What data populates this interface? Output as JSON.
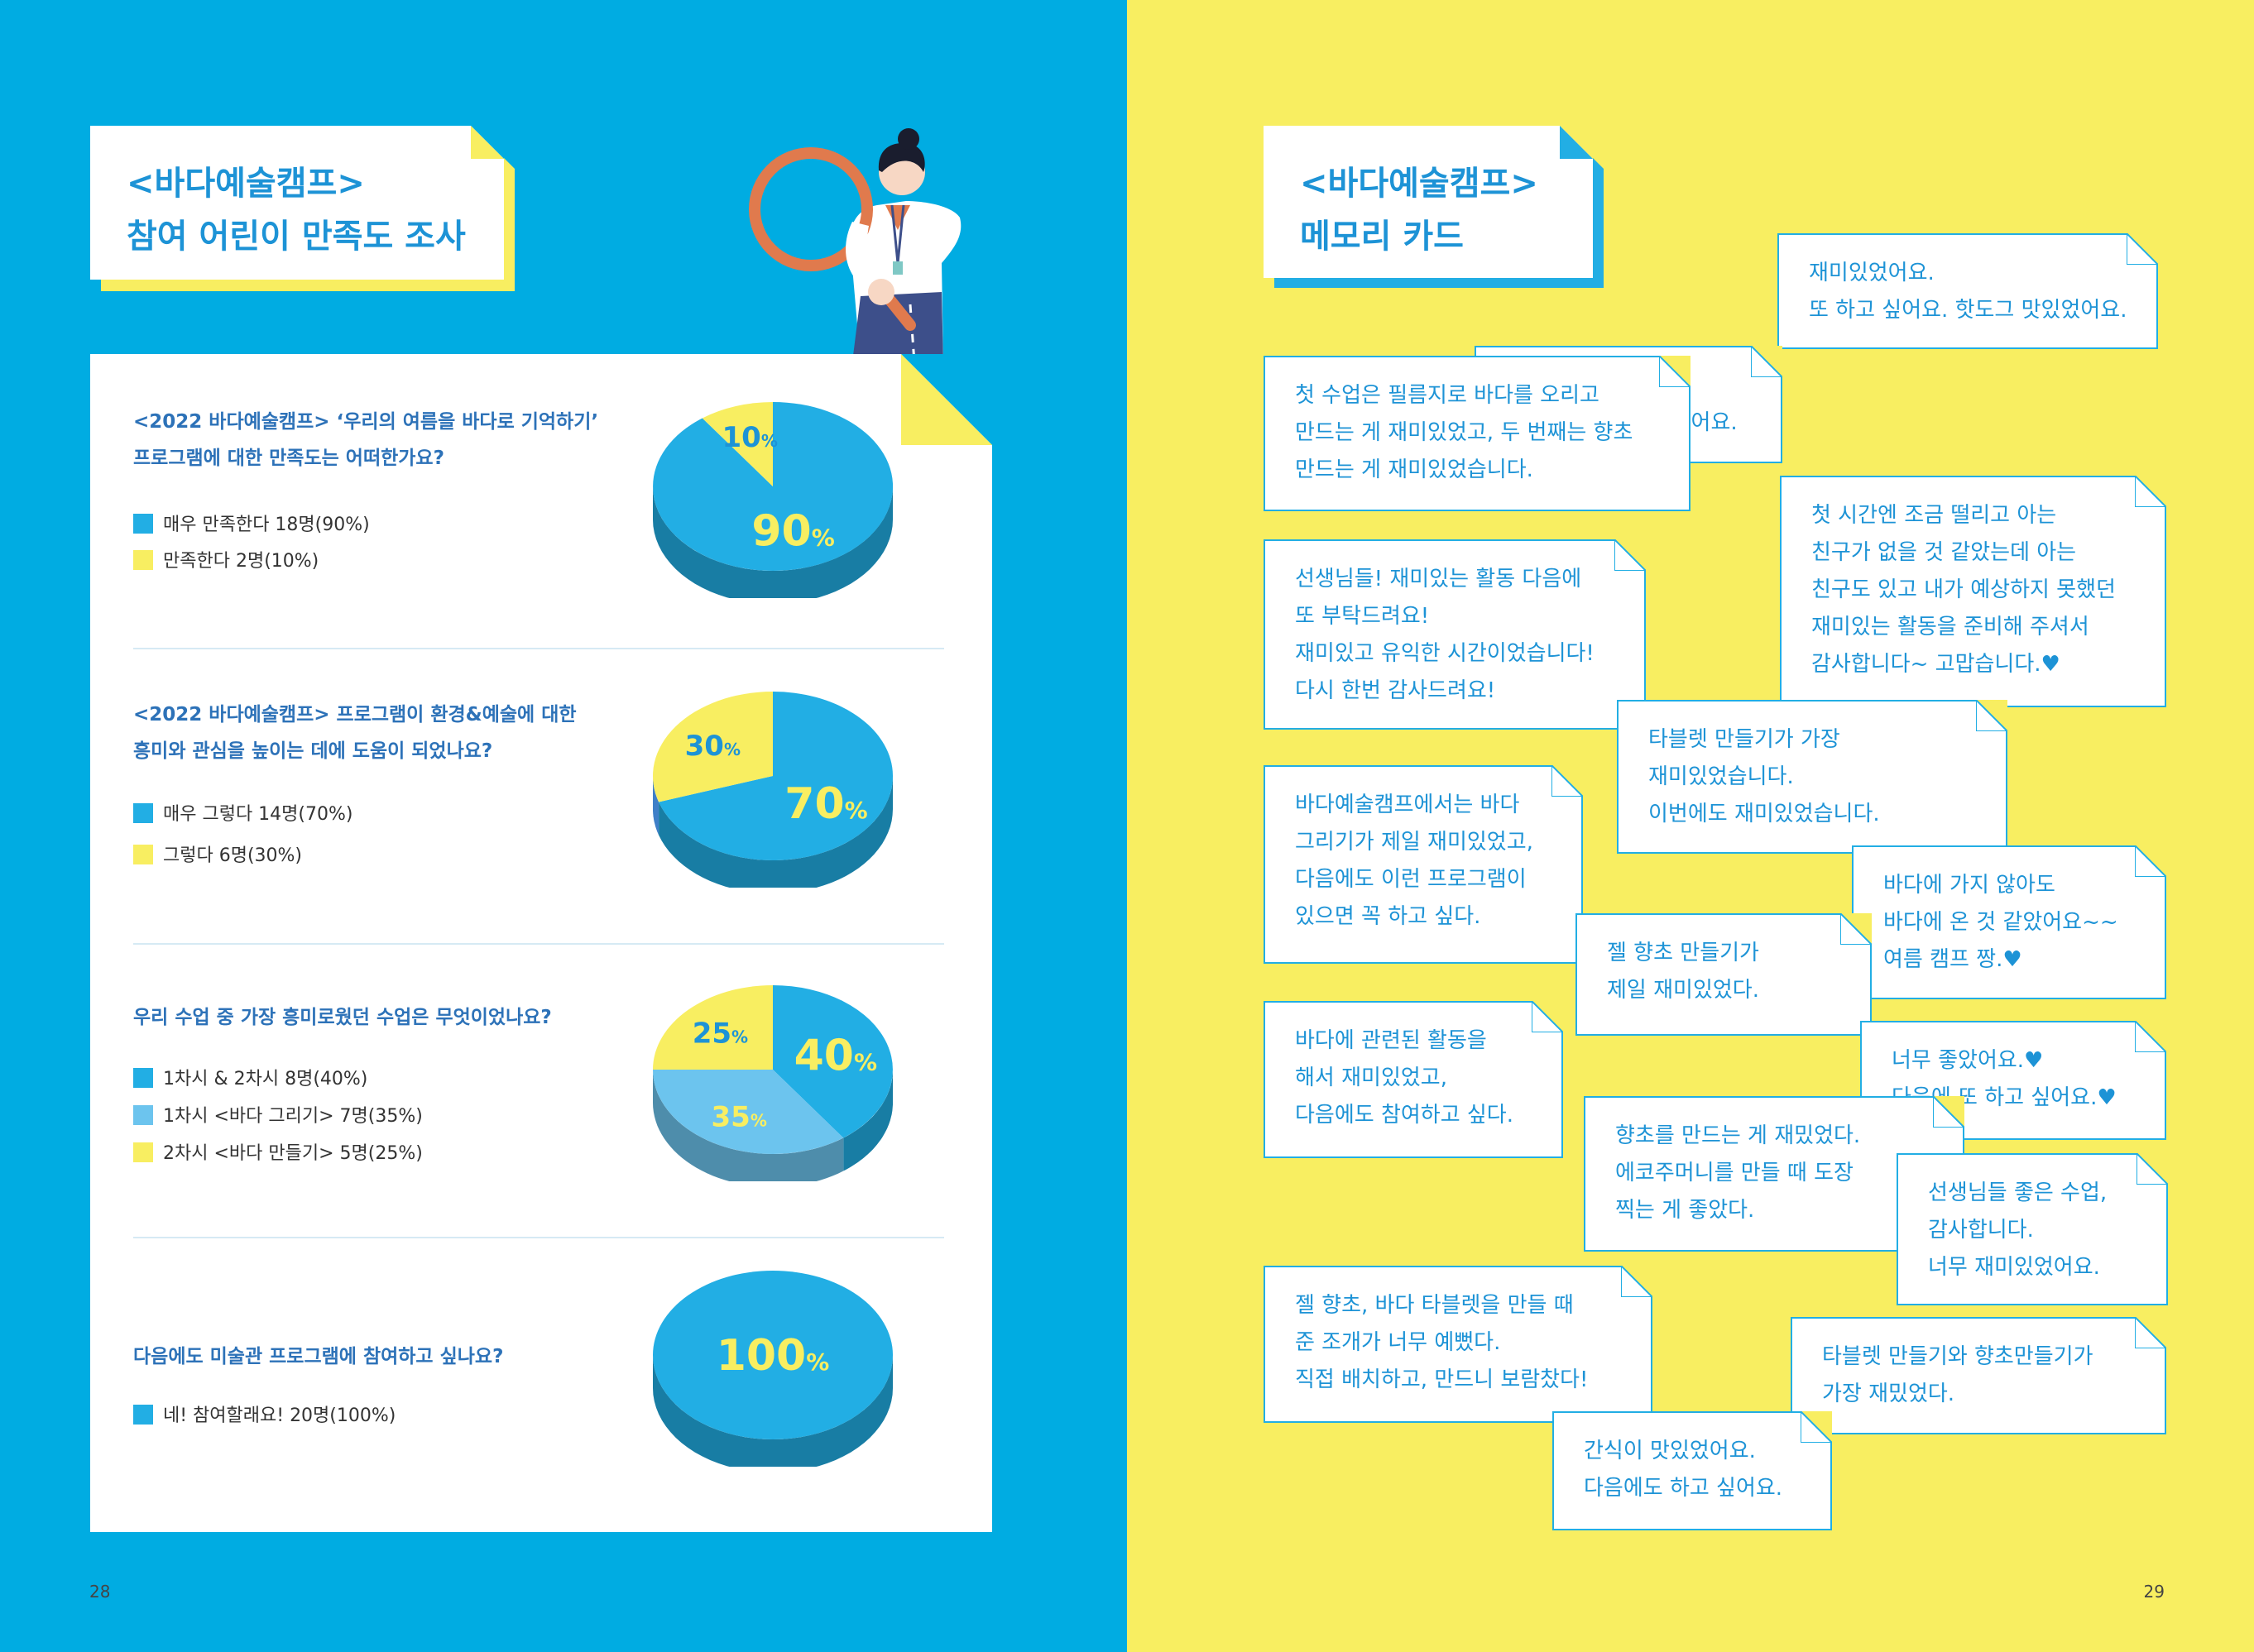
{
  "left": {
    "title": {
      "line1": "<바다예술캠프>",
      "line2": "참여 어린이 만족도 조사"
    },
    "questions": [
      {
        "question_line1": "<2022 바다예술캠프> ‘우리의 여름을 바다로 기억하기’",
        "question_line2": "프로그램에 대한 만족도는 어떠한가요?",
        "legend": [
          {
            "label": "매우 만족한다 18명(90%)",
            "color": "#22aee4"
          },
          {
            "label": "만족한다 2명(10%)",
            "color": "#f8ee61"
          }
        ],
        "slices": [
          {
            "percent": 90,
            "label": "90%",
            "color": "#22aee4"
          },
          {
            "percent": 10,
            "label": "10%",
            "color": "#f8ee61"
          }
        ]
      },
      {
        "question_line1": "<2022 바다예술캠프> 프로그램이 환경&예술에 대한",
        "question_line2": "흥미와 관심을 높이는 데에 도움이 되었나요?",
        "legend": [
          {
            "label": "매우 그렇다 14명(70%)",
            "color": "#22aee4"
          },
          {
            "label": "그렇다 6명(30%)",
            "color": "#f8ee61"
          }
        ],
        "slices": [
          {
            "percent": 70,
            "label": "70%",
            "color": "#22aee4"
          },
          {
            "percent": 30,
            "label": "30%",
            "color": "#f8ee61"
          }
        ]
      },
      {
        "question_line1": "우리 수업 중 가장 흥미로웠던 수업은 무엇이었나요?",
        "question_line2": "",
        "legend": [
          {
            "label": "1차시 & 2차시 8명(40%)",
            "color": "#22aee4"
          },
          {
            "label": "1차시 <바다 그리기> 7명(35%)",
            "color": "#6cc4ee"
          },
          {
            "label": "2차시 <바다 만들기> 5명(25%)",
            "color": "#f8ee61"
          }
        ],
        "slices": [
          {
            "percent": 40,
            "label": "40%",
            "color": "#22aee4"
          },
          {
            "percent": 35,
            "label": "35%",
            "color": "#6cc4ee"
          },
          {
            "percent": 25,
            "label": "25%",
            "color": "#f8ee61"
          }
        ]
      },
      {
        "question_line1": "다음에도 미술관 프로그램에 참여하고 싶나요?",
        "question_line2": "",
        "legend": [
          {
            "label": "네! 참여할래요! 20명(100%)",
            "color": "#22aee4"
          }
        ],
        "slices": [
          {
            "percent": 100,
            "label": "100%",
            "color": "#22aee4"
          }
        ]
      }
    ],
    "page_number": "28"
  },
  "right": {
    "title": {
      "line1": "<바다예술캠프>",
      "line2": "메모리 카드"
    },
    "memos": [
      "재미있었어요.\n또 하고 싶어요. 핫도그 맛있었어요.",
      "선생님 감사합니다!\n즐거운 여름방학이었어요.",
      "첫 수업은 필름지로 바다를 오리고\n만드는 게 재미있었고, 두 번째는 향초\n만드는 게 재미있었습니다.",
      "첫 시간엔 조금 떨리고 아는\n친구가 없을 것 같았는데 아는\n친구도 있고 내가 예상하지 못했던\n재미있는 활동을 준비해 주셔서\n감사합니다~ 고맙습니다.♥",
      "선생님들! 재미있는 활동 다음에\n또 부탁드려요!\n재미있고 유익한 시간이었습니다!\n다시 한번 감사드려요!",
      "타블렛 만들기가 가장\n재미있었습니다.\n이번에도 재미있었습니다.",
      "바다예술캠프에서는 바다\n그리기가 제일 재미있었고,\n다음에도 이런 프로그램이\n있으면 꼭 하고 싶다.",
      "바다에 가지 않아도\n바다에 온 것 같았어요~~\n여름 캠프 짱.♥",
      "젤 향초 만들기가\n제일 재미있었다.",
      "바다에 관련된 활동을\n해서 재미있었고,\n다음에도 참여하고 싶다.",
      "너무 좋았어요.♥\n다음에 또 하고 싶어요.♥",
      "향초를 만드는 게 재밌었다.\n에코주머니를 만들 때 도장\n찍는 게 좋았다.",
      "선생님들 좋은 수업,\n감사합니다.\n너무 재미있었어요.",
      "젤 향초, 바다 타블렛을 만들 때\n준 조개가 너무 예뻤다.\n직접 배치하고, 만드니 보람찼다!",
      "타블렛 만들기와 향초만들기가\n가장 재밌었다.",
      "간식이 맛있었어요.\n다음에도 하고 싶어요."
    ],
    "page_number": "29"
  },
  "colors": {
    "left_bg": "#00ace2",
    "right_bg": "#f8ee61",
    "title_text": "#1d93d6",
    "question_text": "#2d72b8",
    "pie_blue": "#22aee4",
    "pie_light_blue": "#6cc4ee",
    "pie_yellow": "#f8ee61"
  }
}
